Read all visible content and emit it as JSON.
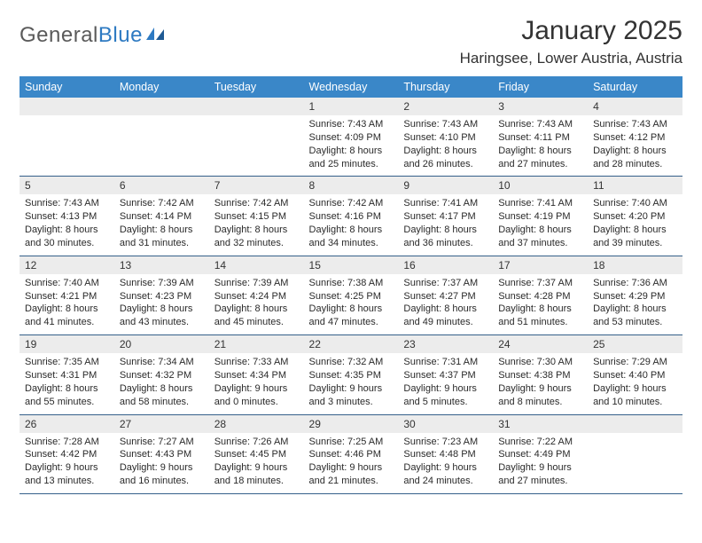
{
  "logo": {
    "word1": "General",
    "word2": "Blue"
  },
  "title": "January 2025",
  "location": "Haringsee, Lower Austria, Austria",
  "theme": {
    "header_bg": "#3a87c8",
    "header_fg": "#ffffff",
    "daynum_bg": "#ececec",
    "rule_color": "#35608a",
    "logo_blue": "#2e7ac2",
    "text_color": "#2a2a2a",
    "title_fontsize": 30,
    "location_fontsize": 17,
    "header_fontsize": 12.5,
    "cell_fontsize": 11
  },
  "weekdays": [
    "Sunday",
    "Monday",
    "Tuesday",
    "Wednesday",
    "Thursday",
    "Friday",
    "Saturday"
  ],
  "weeks": [
    [
      null,
      null,
      null,
      {
        "n": "1",
        "sunrise": "7:43 AM",
        "sunset": "4:09 PM",
        "day_h": "8",
        "day_m": "25"
      },
      {
        "n": "2",
        "sunrise": "7:43 AM",
        "sunset": "4:10 PM",
        "day_h": "8",
        "day_m": "26"
      },
      {
        "n": "3",
        "sunrise": "7:43 AM",
        "sunset": "4:11 PM",
        "day_h": "8",
        "day_m": "27"
      },
      {
        "n": "4",
        "sunrise": "7:43 AM",
        "sunset": "4:12 PM",
        "day_h": "8",
        "day_m": "28"
      }
    ],
    [
      {
        "n": "5",
        "sunrise": "7:43 AM",
        "sunset": "4:13 PM",
        "day_h": "8",
        "day_m": "30"
      },
      {
        "n": "6",
        "sunrise": "7:42 AM",
        "sunset": "4:14 PM",
        "day_h": "8",
        "day_m": "31"
      },
      {
        "n": "7",
        "sunrise": "7:42 AM",
        "sunset": "4:15 PM",
        "day_h": "8",
        "day_m": "32"
      },
      {
        "n": "8",
        "sunrise": "7:42 AM",
        "sunset": "4:16 PM",
        "day_h": "8",
        "day_m": "34"
      },
      {
        "n": "9",
        "sunrise": "7:41 AM",
        "sunset": "4:17 PM",
        "day_h": "8",
        "day_m": "36"
      },
      {
        "n": "10",
        "sunrise": "7:41 AM",
        "sunset": "4:19 PM",
        "day_h": "8",
        "day_m": "37"
      },
      {
        "n": "11",
        "sunrise": "7:40 AM",
        "sunset": "4:20 PM",
        "day_h": "8",
        "day_m": "39"
      }
    ],
    [
      {
        "n": "12",
        "sunrise": "7:40 AM",
        "sunset": "4:21 PM",
        "day_h": "8",
        "day_m": "41"
      },
      {
        "n": "13",
        "sunrise": "7:39 AM",
        "sunset": "4:23 PM",
        "day_h": "8",
        "day_m": "43"
      },
      {
        "n": "14",
        "sunrise": "7:39 AM",
        "sunset": "4:24 PM",
        "day_h": "8",
        "day_m": "45"
      },
      {
        "n": "15",
        "sunrise": "7:38 AM",
        "sunset": "4:25 PM",
        "day_h": "8",
        "day_m": "47"
      },
      {
        "n": "16",
        "sunrise": "7:37 AM",
        "sunset": "4:27 PM",
        "day_h": "8",
        "day_m": "49"
      },
      {
        "n": "17",
        "sunrise": "7:37 AM",
        "sunset": "4:28 PM",
        "day_h": "8",
        "day_m": "51"
      },
      {
        "n": "18",
        "sunrise": "7:36 AM",
        "sunset": "4:29 PM",
        "day_h": "8",
        "day_m": "53"
      }
    ],
    [
      {
        "n": "19",
        "sunrise": "7:35 AM",
        "sunset": "4:31 PM",
        "day_h": "8",
        "day_m": "55"
      },
      {
        "n": "20",
        "sunrise": "7:34 AM",
        "sunset": "4:32 PM",
        "day_h": "8",
        "day_m": "58"
      },
      {
        "n": "21",
        "sunrise": "7:33 AM",
        "sunset": "4:34 PM",
        "day_h": "9",
        "day_m": "0"
      },
      {
        "n": "22",
        "sunrise": "7:32 AM",
        "sunset": "4:35 PM",
        "day_h": "9",
        "day_m": "3"
      },
      {
        "n": "23",
        "sunrise": "7:31 AM",
        "sunset": "4:37 PM",
        "day_h": "9",
        "day_m": "5"
      },
      {
        "n": "24",
        "sunrise": "7:30 AM",
        "sunset": "4:38 PM",
        "day_h": "9",
        "day_m": "8"
      },
      {
        "n": "25",
        "sunrise": "7:29 AM",
        "sunset": "4:40 PM",
        "day_h": "9",
        "day_m": "10"
      }
    ],
    [
      {
        "n": "26",
        "sunrise": "7:28 AM",
        "sunset": "4:42 PM",
        "day_h": "9",
        "day_m": "13"
      },
      {
        "n": "27",
        "sunrise": "7:27 AM",
        "sunset": "4:43 PM",
        "day_h": "9",
        "day_m": "16"
      },
      {
        "n": "28",
        "sunrise": "7:26 AM",
        "sunset": "4:45 PM",
        "day_h": "9",
        "day_m": "18"
      },
      {
        "n": "29",
        "sunrise": "7:25 AM",
        "sunset": "4:46 PM",
        "day_h": "9",
        "day_m": "21"
      },
      {
        "n": "30",
        "sunrise": "7:23 AM",
        "sunset": "4:48 PM",
        "day_h": "9",
        "day_m": "24"
      },
      {
        "n": "31",
        "sunrise": "7:22 AM",
        "sunset": "4:49 PM",
        "day_h": "9",
        "day_m": "27"
      },
      null
    ]
  ],
  "labels": {
    "sunrise": "Sunrise:",
    "sunset": "Sunset:",
    "daylight": "Daylight:",
    "hours": "hours",
    "and": "and",
    "minutes": "minutes."
  }
}
